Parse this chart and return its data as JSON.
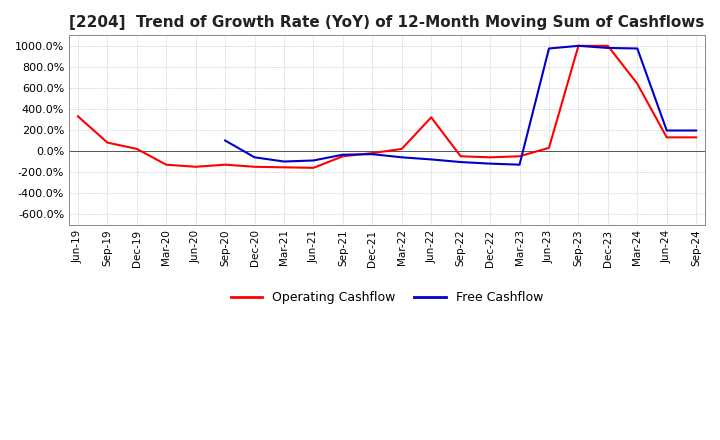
{
  "title": "[2204]  Trend of Growth Rate (YoY) of 12-Month Moving Sum of Cashflows",
  "title_fontsize": 11,
  "ylim": [
    -700,
    1100
  ],
  "yticks": [
    -600,
    -400,
    -200,
    0,
    200,
    400,
    600,
    800,
    1000
  ],
  "ytick_labels": [
    "-600.0%",
    "-400.0%",
    "-200.0%",
    "0.0%",
    "200.0%",
    "400.0%",
    "600.0%",
    "800.0%",
    "1000.0%"
  ],
  "background_color": "#ffffff",
  "plot_bg_color": "#ffffff",
  "grid_color": "#aaaaaa",
  "operating_color": "#ff0000",
  "free_color": "#0000cc",
  "legend_labels": [
    "Operating Cashflow",
    "Free Cashflow"
  ],
  "dates": [
    "Jun-19",
    "Sep-19",
    "Dec-19",
    "Mar-20",
    "Jun-20",
    "Sep-20",
    "Dec-20",
    "Mar-21",
    "Jun-21",
    "Sep-21",
    "Dec-21",
    "Mar-22",
    "Jun-22",
    "Sep-22",
    "Dec-22",
    "Mar-23",
    "Jun-23",
    "Sep-23",
    "Dec-23",
    "Mar-24",
    "Jun-24",
    "Sep-24"
  ],
  "operating_cashflow": [
    330,
    80,
    20,
    -130,
    -150,
    -130,
    -150,
    -155,
    -160,
    -50,
    -20,
    20,
    320,
    -50,
    -60,
    -50,
    30,
    1000,
    1000,
    640,
    130,
    130
  ],
  "free_cashflow": [
    null,
    null,
    null,
    null,
    null,
    100,
    -60,
    -100,
    -90,
    -35,
    -30,
    -60,
    -80,
    -105,
    -120,
    -130,
    975,
    1000,
    980,
    975,
    195,
    195
  ]
}
